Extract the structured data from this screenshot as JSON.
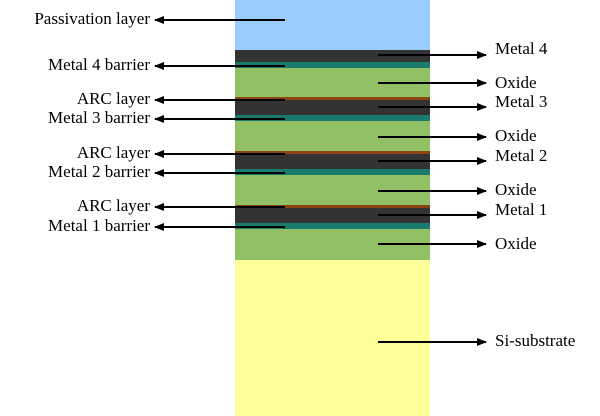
{
  "left_labels": [
    "Passivation layer",
    "Metal 4 barrier",
    "ARC layer",
    "Metal 3 barrier",
    "ARC layer",
    "Metal 2 barrier",
    "ARC layer",
    "Metal 1 barrier"
  ],
  "right_labels": [
    "Metal 4",
    "Oxide",
    "Metal 3",
    "Oxide",
    "Metal 2",
    "Oxide",
    "Metal 1",
    "Oxide",
    "Si-substrate"
  ]
}
